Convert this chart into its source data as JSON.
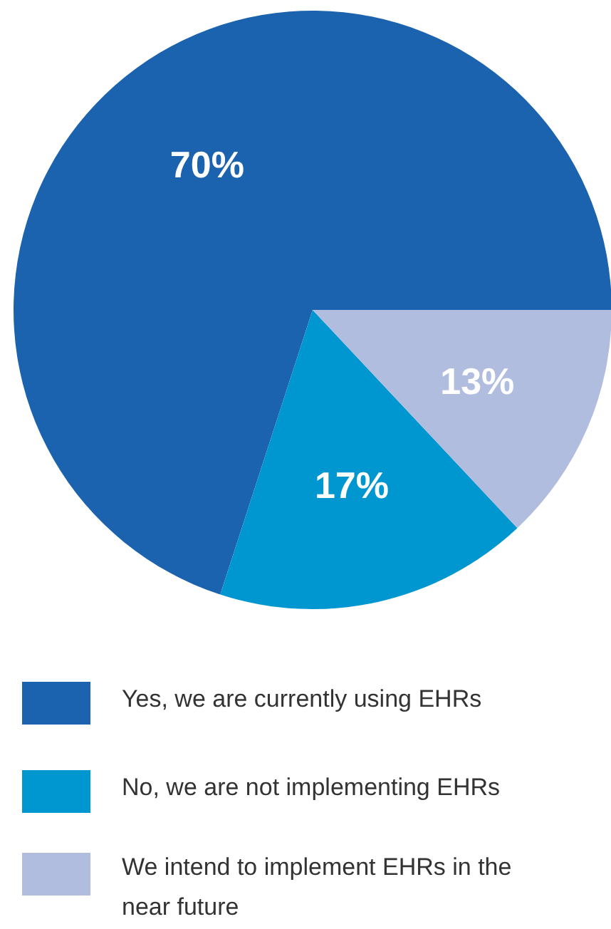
{
  "chart_data": {
    "type": "pie",
    "categories": [
      "Yes, we are currently using EHRs",
      "No, we are not implementing EHRs",
      "We intend to implement EHRs in the near future"
    ],
    "values": [
      70,
      17,
      13
    ],
    "colors": [
      "#1b63ae",
      "#0096d0",
      "#b0bddf"
    ],
    "value_labels": [
      "70%",
      "17%",
      "13%"
    ],
    "legend": "bottom"
  }
}
